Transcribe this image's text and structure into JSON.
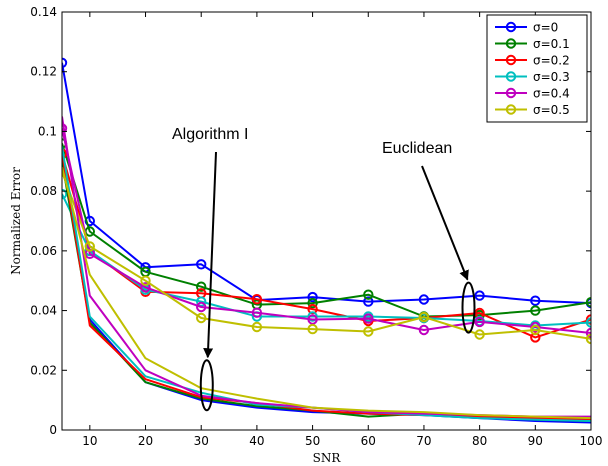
{
  "chart_data": {
    "type": "line",
    "xlabel": "SNR",
    "ylabel": "Normalized Error",
    "xlim": [
      5,
      100
    ],
    "ylim": [
      0,
      0.14
    ],
    "xticks": [
      10,
      20,
      30,
      40,
      50,
      60,
      70,
      80,
      90,
      100
    ],
    "yticks": [
      0,
      0.02,
      0.04,
      0.06,
      0.08,
      0.1,
      0.12,
      0.14
    ],
    "ytick_labels": [
      "0",
      "0.02",
      "0.04",
      "0.06",
      "0.08",
      "0.1",
      "0.12",
      "0.14"
    ],
    "grid": false,
    "legend_position": "top-right",
    "x": [
      5,
      10,
      20,
      30,
      40,
      50,
      60,
      70,
      80,
      90,
      100
    ],
    "series": [
      {
        "name": "σ=0",
        "color": "#0000ff",
        "markers": true,
        "values": [
          0.123,
          0.07,
          0.0545,
          0.0555,
          0.0435,
          0.0445,
          0.043,
          0.0437,
          0.045,
          0.0433,
          0.0425
        ]
      },
      {
        "name": "σ=0.1",
        "color": "#008000",
        "markers": true,
        "values": [
          0.096,
          0.0665,
          0.053,
          0.048,
          0.042,
          0.0425,
          0.0453,
          0.038,
          0.0385,
          0.04,
          0.0428
        ]
      },
      {
        "name": "σ=0.2",
        "color": "#ff0000",
        "markers": true,
        "values": [
          0.0925,
          0.06,
          0.0463,
          0.0458,
          0.0438,
          0.0405,
          0.0365,
          0.0375,
          0.0392,
          0.031,
          0.037
        ]
      },
      {
        "name": "σ=0.3",
        "color": "#00bfbf",
        "markers": true,
        "values": [
          0.079,
          0.06,
          0.047,
          0.043,
          0.038,
          0.038,
          0.038,
          0.0375,
          0.0365,
          0.035,
          0.036
        ]
      },
      {
        "name": "σ=0.4",
        "color": "#bf00bf",
        "markers": true,
        "values": [
          0.101,
          0.059,
          0.0478,
          0.0412,
          0.0393,
          0.037,
          0.0373,
          0.0335,
          0.0362,
          0.0345,
          0.0325
        ]
      },
      {
        "name": "σ=0.5",
        "color": "#bfbf00",
        "markers": true,
        "values": [
          0.0865,
          0.0615,
          0.05,
          0.0375,
          0.0345,
          0.0338,
          0.033,
          0.0378,
          0.032,
          0.0335,
          0.0305
        ]
      },
      {
        "color": "#0000ff",
        "markers": false,
        "values": [
          0.092,
          0.037,
          0.016,
          0.01,
          0.0075,
          0.006,
          0.0055,
          0.005,
          0.004,
          0.003,
          0.0025
        ]
      },
      {
        "color": "#008000",
        "markers": false,
        "values": [
          0.09,
          0.036,
          0.016,
          0.0105,
          0.008,
          0.0065,
          0.0045,
          0.0055,
          0.0045,
          0.0035,
          0.003
        ]
      },
      {
        "color": "#ff0000",
        "markers": false,
        "values": [
          0.093,
          0.035,
          0.017,
          0.011,
          0.009,
          0.0065,
          0.0055,
          0.005,
          0.0045,
          0.004,
          0.0035
        ]
      },
      {
        "color": "#00bfbf",
        "markers": false,
        "values": [
          0.095,
          0.038,
          0.018,
          0.0125,
          0.0085,
          0.0075,
          0.006,
          0.005,
          0.004,
          0.0035,
          0.003
        ]
      },
      {
        "color": "#bf00bf",
        "markers": false,
        "values": [
          0.105,
          0.045,
          0.02,
          0.0115,
          0.009,
          0.0075,
          0.006,
          0.0055,
          0.005,
          0.0045,
          0.0045
        ]
      },
      {
        "color": "#bfbf00",
        "markers": false,
        "values": [
          0.088,
          0.052,
          0.024,
          0.014,
          0.0105,
          0.0075,
          0.0065,
          0.006,
          0.005,
          0.0045,
          0.004
        ]
      }
    ],
    "annotations": [
      {
        "text": "Algorithm I",
        "target": [
          31,
          0.015
        ]
      },
      {
        "text": "Euclidean",
        "target": [
          78,
          0.041
        ]
      }
    ]
  }
}
